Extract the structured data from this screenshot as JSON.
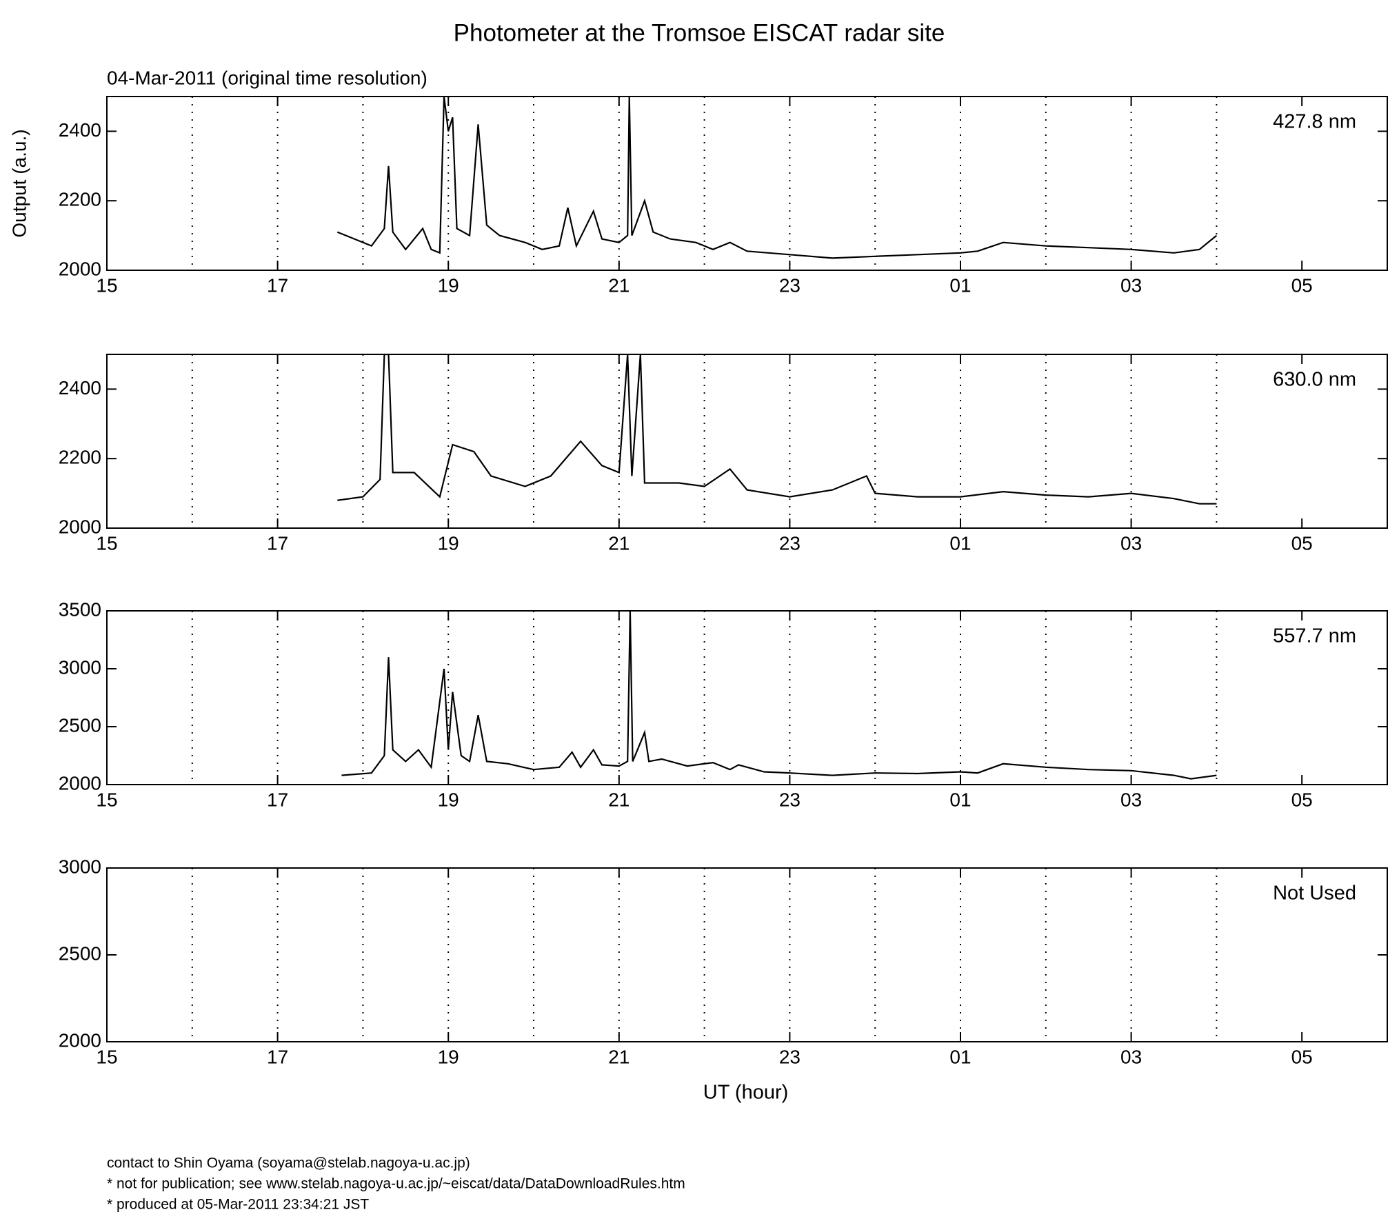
{
  "title": "Photometer at the Tromsoe EISCAT radar site",
  "subtitle": "04-Mar-2011 (original time resolution)",
  "footer": [
    "contact to Shin Oyama (soyama@stelab.nagoya-u.ac.jp)",
    "* not for publication; see www.stelab.nagoya-u.ac.jp/~eiscat/data/DataDownloadRules.htm",
    "* produced at 05-Mar-2011 23:34:21 JST"
  ],
  "chart_data": [
    {
      "type": "line",
      "annotation": "427.8 nm",
      "y_label": "Output (a.u.)",
      "color": "#000000",
      "grid": true,
      "xlim": [
        15,
        30
      ],
      "xticks": [
        15,
        17,
        19,
        21,
        23,
        {
          "value": 25,
          "label": "01"
        },
        {
          "value": 27,
          "label": "03"
        },
        {
          "value": 29,
          "label": "05"
        }
      ],
      "xgrid": [
        16,
        17,
        18,
        19,
        20,
        21,
        22,
        23,
        24,
        25,
        26,
        27,
        28
      ],
      "ylim": [
        2000,
        2500
      ],
      "yticks": [
        2000,
        2200,
        2400
      ],
      "x": [
        17.7,
        17.9,
        18.1,
        18.25,
        18.3,
        18.35,
        18.5,
        18.7,
        18.8,
        18.9,
        18.95,
        19.0,
        19.05,
        19.1,
        19.25,
        19.35,
        19.45,
        19.6,
        19.9,
        20.1,
        20.3,
        20.4,
        20.5,
        20.7,
        20.8,
        21.0,
        21.1,
        21.12,
        21.15,
        21.3,
        21.4,
        21.6,
        21.9,
        22.1,
        22.3,
        22.5,
        23.0,
        23.5,
        24.0,
        24.5,
        25.0,
        25.2,
        25.5,
        26.0,
        26.5,
        27.0,
        27.5,
        27.8,
        28.0
      ],
      "values": [
        2110,
        2090,
        2070,
        2120,
        2300,
        2110,
        2060,
        2120,
        2060,
        2050,
        2500,
        2400,
        2440,
        2120,
        2100,
        2420,
        2130,
        2100,
        2080,
        2060,
        2070,
        2180,
        2070,
        2170,
        2090,
        2080,
        2100,
        2500,
        2100,
        2200,
        2110,
        2090,
        2080,
        2060,
        2080,
        2055,
        2045,
        2035,
        2040,
        2045,
        2050,
        2055,
        2080,
        2070,
        2065,
        2060,
        2050,
        2060,
        2100
      ]
    },
    {
      "type": "line",
      "annotation": "630.0 nm",
      "color": "#000000",
      "grid": true,
      "xlim": [
        15,
        30
      ],
      "xticks": [
        15,
        17,
        19,
        21,
        23,
        {
          "value": 25,
          "label": "01"
        },
        {
          "value": 27,
          "label": "03"
        },
        {
          "value": 29,
          "label": "05"
        }
      ],
      "xgrid": [
        16,
        17,
        18,
        19,
        20,
        21,
        22,
        23,
        24,
        25,
        26,
        27,
        28
      ],
      "ylim": [
        2000,
        2500
      ],
      "yticks": [
        2000,
        2200,
        2400
      ],
      "x": [
        17.7,
        18.0,
        18.2,
        18.25,
        18.3,
        18.35,
        18.6,
        18.9,
        19.05,
        19.3,
        19.5,
        19.9,
        20.2,
        20.55,
        20.8,
        21.0,
        21.1,
        21.15,
        21.25,
        21.3,
        21.7,
        22.0,
        22.3,
        22.5,
        23.0,
        23.5,
        23.9,
        24.0,
        24.5,
        25.0,
        25.5,
        26.0,
        26.5,
        27.0,
        27.5,
        27.8,
        28.0
      ],
      "values": [
        2080,
        2090,
        2140,
        2500,
        2500,
        2160,
        2160,
        2090,
        2240,
        2220,
        2150,
        2120,
        2150,
        2250,
        2180,
        2160,
        2500,
        2150,
        2500,
        2130,
        2130,
        2120,
        2170,
        2110,
        2090,
        2110,
        2150,
        2100,
        2090,
        2090,
        2105,
        2095,
        2090,
        2100,
        2085,
        2070,
        2070
      ]
    },
    {
      "type": "line",
      "annotation": "557.7 nm",
      "color": "#000000",
      "grid": true,
      "xlim": [
        15,
        30
      ],
      "xticks": [
        15,
        17,
        19,
        21,
        23,
        {
          "value": 25,
          "label": "01"
        },
        {
          "value": 27,
          "label": "03"
        },
        {
          "value": 29,
          "label": "05"
        }
      ],
      "xgrid": [
        16,
        17,
        18,
        19,
        20,
        21,
        22,
        23,
        24,
        25,
        26,
        27,
        28
      ],
      "ylim": [
        2000,
        3500
      ],
      "yticks": [
        2000,
        2500,
        3000,
        3500
      ],
      "x": [
        17.75,
        18.1,
        18.25,
        18.3,
        18.35,
        18.5,
        18.65,
        18.8,
        18.95,
        19.0,
        19.05,
        19.15,
        19.25,
        19.35,
        19.45,
        19.7,
        20.0,
        20.3,
        20.45,
        20.55,
        20.7,
        20.8,
        21.0,
        21.1,
        21.13,
        21.16,
        21.3,
        21.35,
        21.5,
        21.8,
        22.1,
        22.3,
        22.4,
        22.7,
        23.0,
        23.5,
        24.0,
        24.5,
        25.0,
        25.2,
        25.5,
        26.0,
        26.5,
        27.0,
        27.5,
        27.7,
        28.0
      ],
      "values": [
        2080,
        2100,
        2250,
        3100,
        2300,
        2200,
        2300,
        2150,
        3000,
        2300,
        2800,
        2250,
        2200,
        2600,
        2200,
        2180,
        2130,
        2150,
        2280,
        2150,
        2300,
        2170,
        2160,
        2200,
        3500,
        2200,
        2450,
        2200,
        2220,
        2160,
        2190,
        2130,
        2170,
        2110,
        2100,
        2080,
        2100,
        2095,
        2110,
        2100,
        2180,
        2150,
        2130,
        2120,
        2080,
        2050,
        2080
      ]
    },
    {
      "type": "line",
      "annotation": "Not Used",
      "x_label": "UT (hour)",
      "color": "#000000",
      "grid": true,
      "xlim": [
        15,
        30
      ],
      "xticks": [
        15,
        17,
        19,
        21,
        23,
        {
          "value": 25,
          "label": "01"
        },
        {
          "value": 27,
          "label": "03"
        },
        {
          "value": 29,
          "label": "05"
        }
      ],
      "xgrid": [
        16,
        17,
        18,
        19,
        20,
        21,
        22,
        23,
        24,
        25,
        26,
        27,
        28
      ],
      "ylim": [
        2000,
        3000
      ],
      "yticks": [
        2000,
        2500,
        3000
      ],
      "x": [],
      "values": []
    }
  ]
}
